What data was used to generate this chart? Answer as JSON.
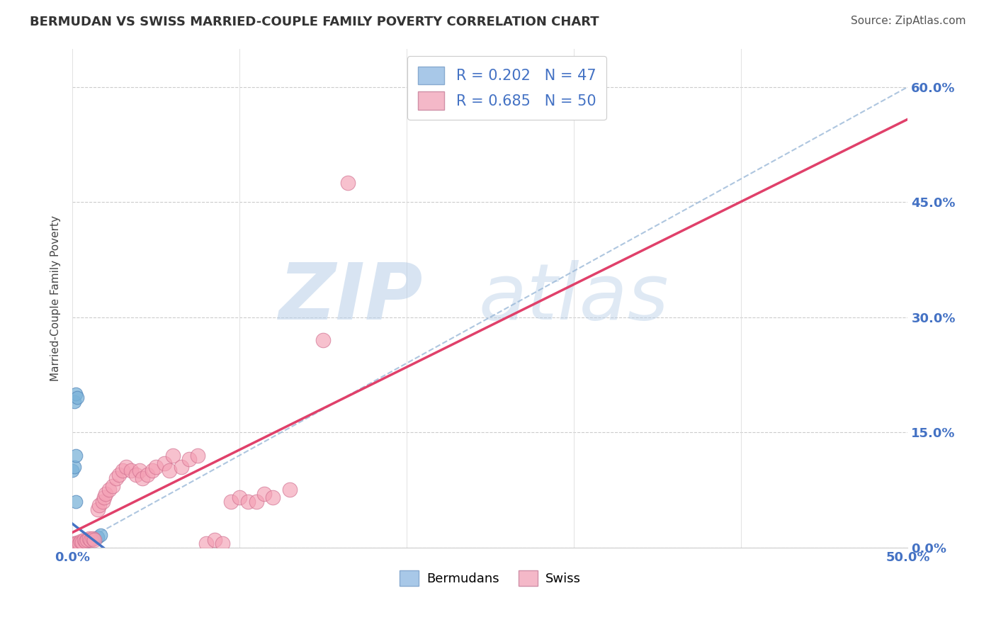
{
  "title": "BERMUDAN VS SWISS MARRIED-COUPLE FAMILY POVERTY CORRELATION CHART",
  "source": "Source: ZipAtlas.com",
  "ylabel": "Married-Couple Family Poverty",
  "legend_label1": "Bermudans",
  "legend_label2": "Swiss",
  "R1": 0.202,
  "N1": 47,
  "R2": 0.685,
  "N2": 50,
  "blue_scatter_color": "#7bb3d9",
  "pink_scatter_color": "#f4a0b4",
  "blue_line_color": "#4472c4",
  "pink_line_color": "#e0406a",
  "gray_dash_color": "#aaaaaa",
  "blue_legend_patch": "#a8c8e8",
  "pink_legend_patch": "#f4b8c8",
  "x_blue": [
    0.0,
    0.0,
    0.0,
    0.0,
    0.0,
    0.001,
    0.001,
    0.001,
    0.001,
    0.001,
    0.001,
    0.001,
    0.001,
    0.002,
    0.002,
    0.002,
    0.002,
    0.002,
    0.002,
    0.002,
    0.003,
    0.003,
    0.003,
    0.003,
    0.004,
    0.004,
    0.004,
    0.005,
    0.005,
    0.006,
    0.006,
    0.007,
    0.008,
    0.009,
    0.01,
    0.011,
    0.012,
    0.013,
    0.015,
    0.017,
    0.0,
    0.001,
    0.002,
    0.001,
    0.002,
    0.003,
    0.002
  ],
  "y_blue": [
    0.0,
    0.001,
    0.001,
    0.001,
    0.002,
    0.0,
    0.001,
    0.001,
    0.002,
    0.002,
    0.002,
    0.003,
    0.004,
    0.001,
    0.001,
    0.002,
    0.002,
    0.003,
    0.003,
    0.004,
    0.002,
    0.003,
    0.004,
    0.005,
    0.003,
    0.004,
    0.005,
    0.004,
    0.006,
    0.005,
    0.006,
    0.007,
    0.008,
    0.009,
    0.01,
    0.01,
    0.011,
    0.012,
    0.014,
    0.016,
    0.1,
    0.105,
    0.12,
    0.19,
    0.2,
    0.195,
    0.06
  ],
  "x_pink": [
    0.0,
    0.001,
    0.002,
    0.003,
    0.004,
    0.005,
    0.006,
    0.007,
    0.008,
    0.009,
    0.01,
    0.011,
    0.012,
    0.013,
    0.015,
    0.016,
    0.018,
    0.019,
    0.02,
    0.022,
    0.024,
    0.026,
    0.028,
    0.03,
    0.032,
    0.035,
    0.038,
    0.04,
    0.042,
    0.045,
    0.048,
    0.05,
    0.055,
    0.058,
    0.06,
    0.065,
    0.07,
    0.075,
    0.08,
    0.085,
    0.09,
    0.095,
    0.1,
    0.105,
    0.11,
    0.115,
    0.12,
    0.13,
    0.15,
    0.165
  ],
  "y_pink": [
    0.003,
    0.005,
    0.004,
    0.006,
    0.005,
    0.008,
    0.007,
    0.01,
    0.008,
    0.01,
    0.012,
    0.01,
    0.012,
    0.01,
    0.05,
    0.055,
    0.06,
    0.065,
    0.07,
    0.075,
    0.08,
    0.09,
    0.095,
    0.1,
    0.105,
    0.1,
    0.095,
    0.1,
    0.09,
    0.095,
    0.1,
    0.105,
    0.11,
    0.1,
    0.12,
    0.105,
    0.115,
    0.12,
    0.005,
    0.01,
    0.005,
    0.06,
    0.065,
    0.06,
    0.06,
    0.07,
    0.065,
    0.075,
    0.27,
    0.475
  ],
  "xlim": [
    0.0,
    0.5
  ],
  "ylim": [
    0.0,
    0.65
  ],
  "yticks": [
    0.0,
    0.15,
    0.3,
    0.45,
    0.6
  ],
  "ytick_labels": [
    "0.0%",
    "15.0%",
    "30.0%",
    "45.0%",
    "60.0%"
  ],
  "background_color": "#ffffff",
  "grid_color": "#e0e0e0"
}
